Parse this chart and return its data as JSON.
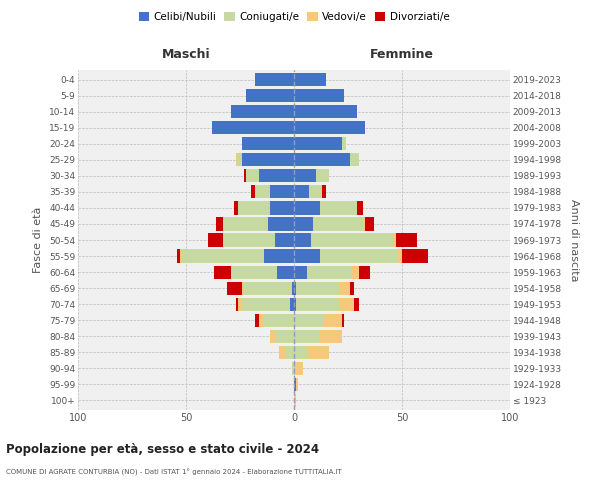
{
  "age_groups": [
    "100+",
    "95-99",
    "90-94",
    "85-89",
    "80-84",
    "75-79",
    "70-74",
    "65-69",
    "60-64",
    "55-59",
    "50-54",
    "45-49",
    "40-44",
    "35-39",
    "30-34",
    "25-29",
    "20-24",
    "15-19",
    "10-14",
    "5-9",
    "0-4"
  ],
  "birth_years": [
    "≤ 1923",
    "1924-1928",
    "1929-1933",
    "1934-1938",
    "1939-1943",
    "1944-1948",
    "1949-1953",
    "1954-1958",
    "1959-1963",
    "1964-1968",
    "1969-1973",
    "1974-1978",
    "1979-1983",
    "1984-1988",
    "1989-1993",
    "1994-1998",
    "1999-2003",
    "2004-2008",
    "2009-2013",
    "2014-2018",
    "2019-2023"
  ],
  "colors": {
    "celibi": "#4472c4",
    "coniugati": "#c5d9a0",
    "vedovi": "#f5c87a",
    "divorziati": "#cc0000"
  },
  "males": {
    "celibi": [
      0,
      0,
      0,
      0,
      0,
      0,
      2,
      1,
      8,
      14,
      9,
      12,
      11,
      11,
      16,
      24,
      24,
      38,
      29,
      22,
      18
    ],
    "coniugati": [
      0,
      0,
      1,
      4,
      9,
      14,
      22,
      22,
      21,
      38,
      24,
      21,
      15,
      7,
      6,
      2,
      0,
      0,
      0,
      0,
      0
    ],
    "vedovi": [
      0,
      0,
      0,
      3,
      2,
      2,
      2,
      1,
      0,
      1,
      0,
      0,
      0,
      0,
      0,
      1,
      0,
      0,
      0,
      0,
      0
    ],
    "divorziati": [
      0,
      0,
      0,
      0,
      0,
      2,
      1,
      7,
      8,
      1,
      7,
      3,
      2,
      2,
      1,
      0,
      0,
      0,
      0,
      0,
      0
    ]
  },
  "females": {
    "celibi": [
      0,
      1,
      0,
      0,
      0,
      0,
      1,
      1,
      6,
      12,
      8,
      9,
      12,
      7,
      10,
      26,
      22,
      33,
      29,
      23,
      15
    ],
    "coniugati": [
      0,
      0,
      1,
      6,
      12,
      14,
      20,
      20,
      21,
      36,
      38,
      23,
      17,
      6,
      6,
      4,
      2,
      0,
      0,
      0,
      0
    ],
    "vedovi": [
      1,
      1,
      3,
      10,
      10,
      8,
      7,
      5,
      3,
      2,
      1,
      1,
      0,
      0,
      0,
      0,
      0,
      0,
      0,
      0,
      0
    ],
    "divorziati": [
      0,
      0,
      0,
      0,
      0,
      1,
      2,
      2,
      5,
      12,
      10,
      4,
      3,
      2,
      0,
      0,
      0,
      0,
      0,
      0,
      0
    ]
  },
  "xlim": 100,
  "title": "Popolazione per età, sesso e stato civile - 2024",
  "subtitle": "COMUNE DI AGRATE CONTURBIA (NO) - Dati ISTAT 1° gennaio 2024 - Elaborazione TUTTITALIA.IT",
  "ylabel_left": "Fasce di età",
  "ylabel_right": "Anni di nascita",
  "xlabel_left": "Maschi",
  "xlabel_right": "Femmine",
  "bg_color": "#f0f0f0",
  "legend_labels": [
    "Celibi/Nubili",
    "Coniugati/e",
    "Vedovi/e",
    "Divorziati/e"
  ]
}
